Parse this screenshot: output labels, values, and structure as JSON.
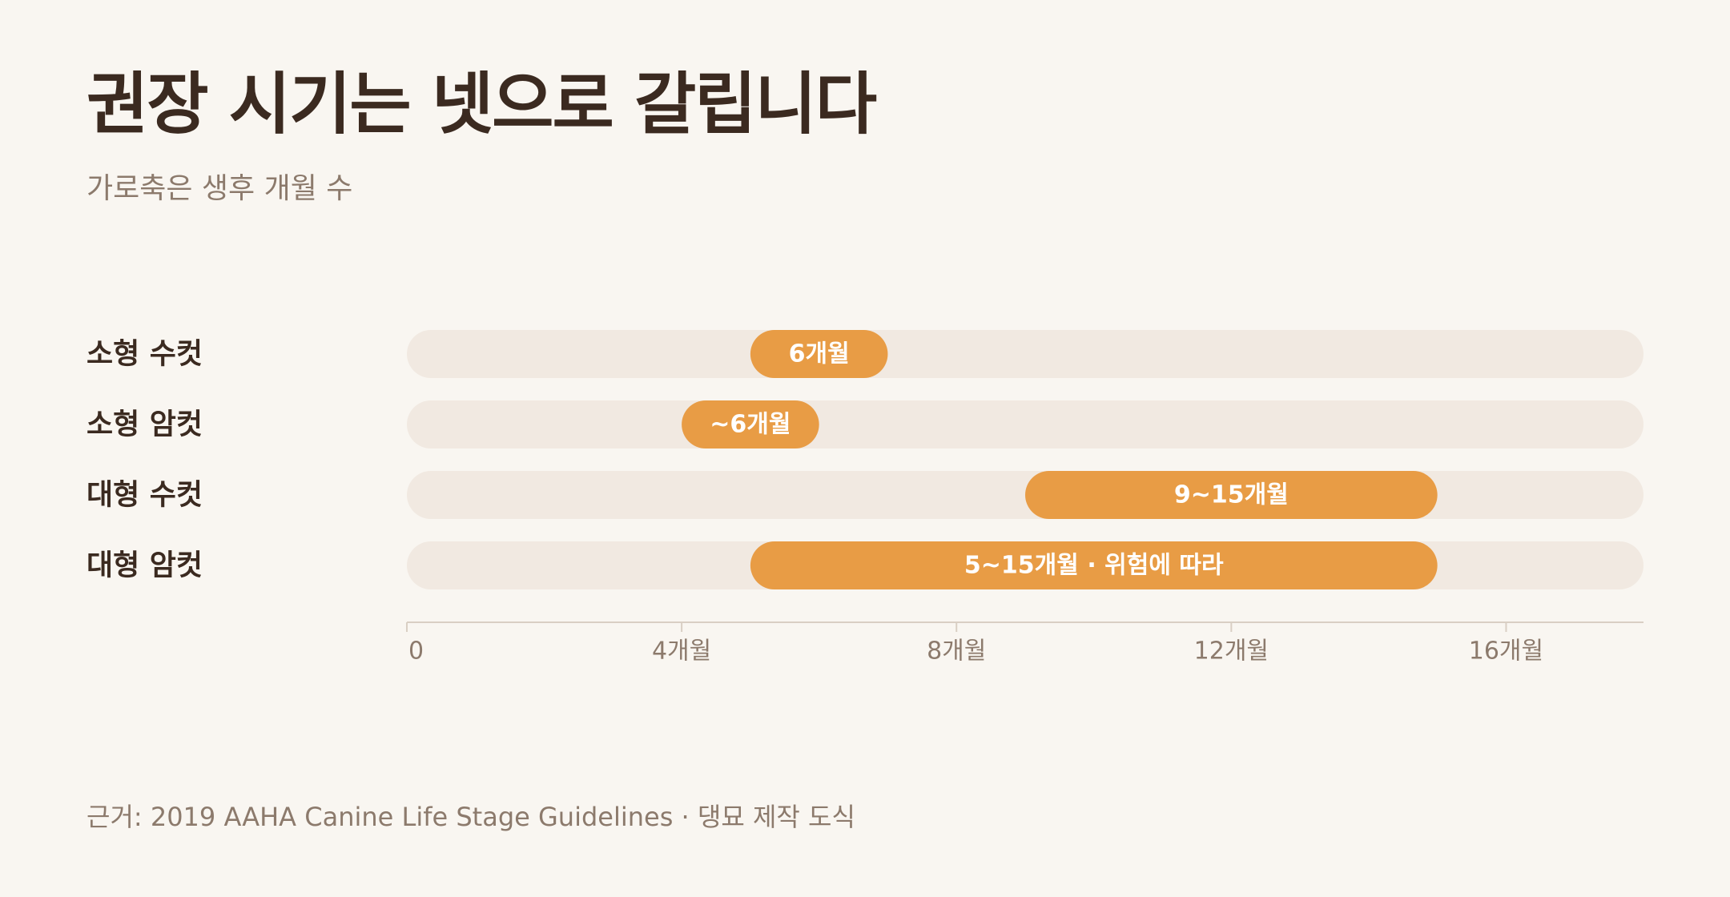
{
  "title": "권장 시기는 넷으로 갈립니다",
  "subtitle": "가로축은 생후 개월 수",
  "source": "근거: 2019 AAHA Canine Life Stage Guidelines · 댕묘 제작 도식",
  "colors": {
    "bar": "#e89c45",
    "track": "#f1e9e1",
    "label": "#3b2a20",
    "tick": "#8c7a6c",
    "axis": "#d9cfc4"
  },
  "chart_data": {
    "type": "bar",
    "orientation": "horizontal-range",
    "xlim": [
      0,
      18
    ],
    "x_ticks": [
      0,
      4,
      8,
      12,
      16
    ],
    "x_tick_labels": [
      "0",
      "4개월",
      "8개월",
      "12개월",
      "16개월"
    ],
    "categories": [
      "소형 수컷",
      "소형 암컷",
      "대형 수컷",
      "대형 암컷"
    ],
    "ranges": [
      {
        "category": "소형 수컷",
        "start": 5,
        "end": 7,
        "label": "6개월"
      },
      {
        "category": "소형 암컷",
        "start": 4,
        "end": 6,
        "label": "~6개월"
      },
      {
        "category": "대형 수컷",
        "start": 9,
        "end": 15,
        "label": "9~15개월"
      },
      {
        "category": "대형 암컷",
        "start": 5,
        "end": 15,
        "label": "5~15개월 · 위험에 따라"
      }
    ]
  }
}
